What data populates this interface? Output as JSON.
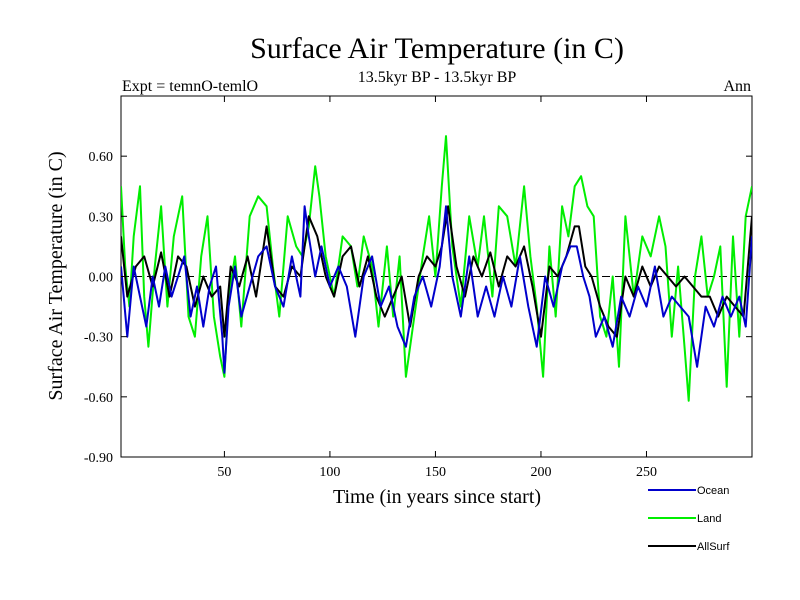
{
  "header": {
    "title": "Surface Air Temperature (in C)",
    "expt": "Expt = temnO-temlO",
    "period": "13.5kyr BP - 13.5kyr BP",
    "season": "Ann"
  },
  "chart_data": {
    "type": "line",
    "title": "Surface Air Temperature (in C)",
    "xlabel": "Time (in years since start)",
    "ylabel": "Surface Air Temperature (in C)",
    "xlim": [
      1,
      300
    ],
    "ylim": [
      -0.9,
      0.9
    ],
    "xticks": [
      50,
      100,
      150,
      200,
      250
    ],
    "yticks": [
      -0.9,
      -0.6,
      -0.3,
      0.0,
      0.3,
      0.6
    ],
    "ytick_labels": [
      "-0.90",
      "-0.60",
      "-0.30",
      "0.00",
      "0.30",
      "0.60"
    ],
    "xtick_labels": [
      "50",
      "100",
      "150",
      "200",
      "250"
    ],
    "reference_line": 0.0,
    "legend_position": "bottom-right",
    "series": [
      {
        "name": "Land",
        "color": "#00ee00",
        "x": [
          1,
          3,
          5,
          7,
          10,
          12,
          14,
          17,
          20,
          23,
          26,
          30,
          33,
          36,
          39,
          42,
          45,
          48,
          50,
          52,
          55,
          58,
          62,
          66,
          70,
          73,
          76,
          80,
          84,
          87,
          90,
          93,
          95,
          98,
          102,
          106,
          110,
          113,
          116,
          120,
          123,
          127,
          130,
          133,
          136,
          140,
          144,
          147,
          150,
          153,
          155,
          158,
          162,
          166,
          170,
          173,
          177,
          180,
          184,
          188,
          192,
          195,
          198,
          201,
          204,
          207,
          210,
          213,
          216,
          219,
          222,
          225,
          228,
          231,
          234,
          237,
          240,
          244,
          248,
          252,
          256,
          259,
          262,
          265,
          268,
          270,
          273,
          276,
          279,
          282,
          285,
          288,
          291,
          294,
          297,
          300
        ],
        "y": [
          0.45,
          0.05,
          -0.15,
          0.2,
          0.45,
          -0.1,
          -0.35,
          0.05,
          0.35,
          -0.15,
          0.2,
          0.4,
          -0.2,
          -0.3,
          0.1,
          0.3,
          -0.2,
          -0.4,
          -0.5,
          -0.1,
          0.1,
          -0.25,
          0.3,
          0.4,
          0.35,
          0.05,
          -0.2,
          0.3,
          0.15,
          0.1,
          0.25,
          0.55,
          0.4,
          0.1,
          -0.1,
          0.2,
          0.15,
          -0.05,
          0.2,
          0.05,
          -0.25,
          0.15,
          -0.2,
          0.1,
          -0.5,
          -0.2,
          0.1,
          0.3,
          0.0,
          0.45,
          0.7,
          0.15,
          -0.15,
          0.3,
          0.05,
          0.3,
          -0.1,
          0.35,
          0.3,
          0.05,
          0.45,
          0.1,
          -0.15,
          -0.5,
          0.15,
          -0.2,
          0.35,
          0.2,
          0.45,
          0.5,
          0.35,
          0.3,
          -0.2,
          -0.3,
          0.0,
          -0.45,
          0.3,
          -0.1,
          0.2,
          0.1,
          0.3,
          0.15,
          -0.3,
          0.05,
          -0.35,
          -0.62,
          0.0,
          0.2,
          -0.1,
          0.0,
          0.15,
          -0.55,
          0.2,
          -0.3,
          0.3,
          0.45
        ]
      },
      {
        "name": "AllSurf",
        "color": "#000000",
        "x": [
          1,
          4,
          8,
          12,
          16,
          20,
          24,
          28,
          32,
          36,
          40,
          44,
          48,
          50,
          53,
          57,
          61,
          65,
          70,
          74,
          78,
          82,
          86,
          90,
          94,
          98,
          102,
          106,
          110,
          114,
          118,
          122,
          126,
          130,
          134,
          138,
          142,
          146,
          150,
          153,
          156,
          160,
          164,
          168,
          172,
          176,
          180,
          184,
          188,
          192,
          196,
          200,
          204,
          208,
          212,
          216,
          218,
          221,
          224,
          228,
          232,
          236,
          240,
          244,
          248,
          252,
          256,
          260,
          264,
          268,
          272,
          276,
          280,
          284,
          288,
          292,
          296,
          300
        ],
        "y": [
          0.2,
          -0.1,
          0.05,
          0.1,
          -0.05,
          0.12,
          -0.1,
          0.1,
          0.05,
          -0.15,
          0.0,
          -0.1,
          -0.05,
          -0.3,
          0.05,
          -0.05,
          0.1,
          -0.1,
          0.25,
          -0.05,
          -0.1,
          0.05,
          0.0,
          0.3,
          0.2,
          0.0,
          -0.1,
          0.1,
          0.15,
          -0.05,
          0.1,
          -0.1,
          -0.2,
          -0.1,
          0.0,
          -0.25,
          0.0,
          0.1,
          0.05,
          0.15,
          0.35,
          0.05,
          -0.1,
          0.1,
          0.0,
          0.12,
          -0.05,
          0.1,
          0.05,
          0.15,
          -0.05,
          -0.3,
          0.05,
          0.0,
          0.1,
          0.25,
          0.25,
          0.05,
          0.0,
          -0.15,
          -0.25,
          -0.3,
          0.0,
          -0.1,
          0.05,
          -0.05,
          0.05,
          0.0,
          -0.05,
          0.0,
          -0.05,
          -0.1,
          -0.1,
          -0.2,
          -0.1,
          -0.15,
          -0.2,
          0.3
        ]
      },
      {
        "name": "Ocean",
        "color": "#0000cc",
        "x": [
          1,
          4,
          7,
          10,
          13,
          16,
          19,
          22,
          25,
          28,
          31,
          34,
          37,
          40,
          43,
          46,
          49,
          50,
          52,
          55,
          58,
          62,
          66,
          70,
          74,
          78,
          82,
          86,
          88,
          90,
          93,
          96,
          100,
          104,
          108,
          112,
          116,
          120,
          124,
          128,
          132,
          136,
          140,
          144,
          148,
          152,
          155,
          158,
          162,
          166,
          170,
          174,
          178,
          182,
          186,
          190,
          194,
          198,
          202,
          206,
          210,
          214,
          217,
          220,
          223,
          226,
          230,
          234,
          238,
          242,
          246,
          250,
          254,
          258,
          262,
          266,
          270,
          274,
          278,
          282,
          286,
          290,
          294,
          297,
          300
        ],
        "y": [
          0.05,
          -0.3,
          0.05,
          -0.1,
          -0.25,
          0.0,
          -0.15,
          0.05,
          -0.1,
          0.0,
          0.1,
          -0.2,
          -0.05,
          -0.25,
          -0.05,
          0.05,
          -0.3,
          -0.48,
          -0.15,
          0.05,
          -0.2,
          -0.05,
          0.1,
          0.15,
          -0.05,
          -0.15,
          0.1,
          -0.1,
          0.35,
          0.2,
          0.0,
          0.15,
          -0.05,
          0.05,
          -0.05,
          -0.3,
          0.0,
          0.1,
          -0.15,
          -0.05,
          -0.25,
          -0.35,
          -0.1,
          0.0,
          -0.15,
          0.05,
          0.35,
          0.0,
          -0.2,
          0.1,
          -0.2,
          -0.05,
          -0.2,
          0.0,
          -0.15,
          0.1,
          -0.15,
          -0.35,
          0.0,
          -0.15,
          0.05,
          0.15,
          0.15,
          0.0,
          -0.1,
          -0.3,
          -0.2,
          -0.35,
          -0.1,
          -0.2,
          -0.05,
          -0.15,
          0.05,
          -0.2,
          -0.1,
          -0.15,
          -0.2,
          -0.45,
          -0.15,
          -0.25,
          -0.1,
          -0.2,
          -0.1,
          -0.25,
          0.2
        ]
      }
    ]
  }
}
